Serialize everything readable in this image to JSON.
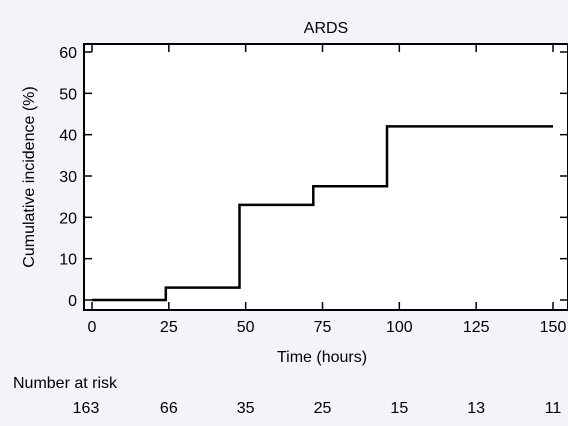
{
  "chart_data": {
    "type": "line",
    "title": "ARDS",
    "xlabel": "Time (hours)",
    "ylabel": "Cumulative incidence (%)",
    "xlim": [
      0,
      150
    ],
    "ylim": [
      -2,
      63
    ],
    "xticks": [
      0,
      25,
      50,
      75,
      100,
      125,
      150
    ],
    "yticks": [
      0,
      10,
      20,
      30,
      40,
      50,
      60
    ],
    "xtick_labels": [
      "0",
      "25",
      "50",
      "75",
      "100",
      "125",
      "150"
    ],
    "ytick_labels": [
      "0",
      "10",
      "20",
      "30",
      "40",
      "50",
      "60"
    ],
    "grid": false,
    "step_curve": {
      "x": [
        0,
        24,
        24,
        48,
        48,
        72,
        72,
        96,
        96,
        150
      ],
      "y": [
        0,
        0,
        3,
        3,
        23,
        23,
        27.5,
        27.5,
        42,
        42
      ]
    },
    "risk_table": {
      "label": "Number at risk",
      "times": [
        0,
        25,
        50,
        75,
        100,
        125,
        150
      ],
      "counts": [
        "163",
        "66",
        "35",
        "25",
        "15",
        "13",
        "11"
      ]
    },
    "colors": {
      "background": "#f3f4f8",
      "plot_area": "#ffffff",
      "line": "#000000"
    }
  }
}
